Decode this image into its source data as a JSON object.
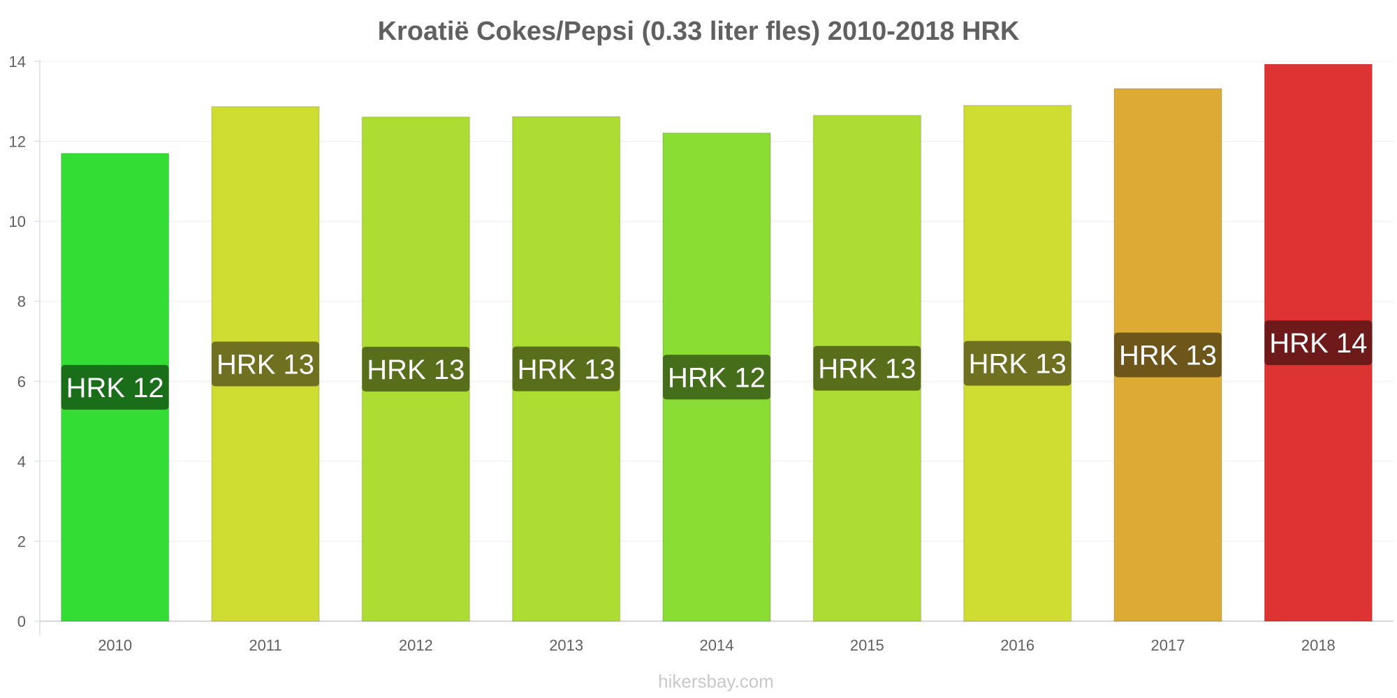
{
  "chart_data": {
    "type": "bar",
    "title": "Kroatië Cokes/Pepsi (0.33 liter fles) 2010-2018 HRK",
    "xlabel": "",
    "ylabel": "",
    "categories": [
      "2010",
      "2011",
      "2012",
      "2013",
      "2014",
      "2015",
      "2016",
      "2017",
      "2018"
    ],
    "values": [
      11.7,
      12.87,
      12.61,
      12.62,
      12.21,
      12.65,
      12.9,
      13.32,
      13.93
    ],
    "data_labels": [
      "HRK 12",
      "HRK 13",
      "HRK 13",
      "HRK 13",
      "HRK 12",
      "HRK 13",
      "HRK 13",
      "HRK 13",
      "HRK 14"
    ],
    "bar_colors": [
      "#33dd33",
      "#cfdd33",
      "#addd33",
      "#addd33",
      "#8add33",
      "#addd33",
      "#cfdd33",
      "#ddaa33",
      "#dd3333"
    ],
    "label_colors": [
      "#1a6e1a",
      "#6f7020",
      "#586e1a",
      "#586e1a",
      "#456e1a",
      "#586e1a",
      "#6f7020",
      "#6e551a",
      "#6e1a1a"
    ],
    "ylim": [
      0,
      14
    ],
    "yticks": [
      0,
      2,
      4,
      6,
      8,
      10,
      12,
      14
    ],
    "grid": true,
    "legend": "none"
  },
  "credit": "hikersbay.com"
}
